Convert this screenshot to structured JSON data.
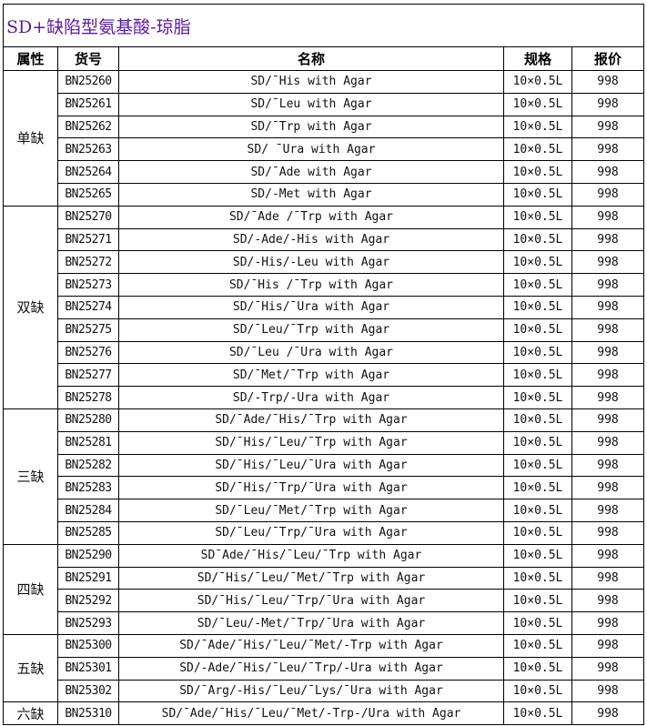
{
  "title": "SD+缺陷型氨基酸-琼脂",
  "title_color": "#5b1a9e",
  "headers": [
    "属性",
    "货号",
    "名称",
    "规格",
    "报价"
  ],
  "groups": [
    {
      "category": "单缺",
      "rows": [
        {
          "code": "BN25260",
          "name": "SD/ˉHis with Agar",
          "spec": "10×0.5L",
          "price": "998"
        },
        {
          "code": "BN25261",
          "name": "SD/ˉLeu with Agar",
          "spec": "10×0.5L",
          "price": "998"
        },
        {
          "code": "BN25262",
          "name": "SD/ˉTrp with Agar",
          "spec": "10×0.5L",
          "price": "998"
        },
        {
          "code": "BN25263",
          "name": "SD/ ˉUra  with Agar",
          "spec": "10×0.5L",
          "price": "998"
        },
        {
          "code": "BN25264",
          "name": "SD/ˉAde  with Agar",
          "spec": "10×0.5L",
          "price": "998"
        },
        {
          "code": "BN25265",
          "name": "SD/-Met  with Agar",
          "spec": "10×0.5L",
          "price": "998"
        }
      ]
    },
    {
      "category": "双缺",
      "rows": [
        {
          "code": "BN25270",
          "name": "SD/ˉAde /ˉTrp with Agar",
          "spec": "10×0.5L",
          "price": "998"
        },
        {
          "code": "BN25271",
          "name": "SD/-Ade/-His with Agar",
          "spec": "10×0.5L",
          "price": "998"
        },
        {
          "code": "BN25272",
          "name": "SD/-His/-Leu with Agar",
          "spec": "10×0.5L",
          "price": "998"
        },
        {
          "code": "BN25273",
          "name": "SD/ˉHis /ˉTrp with Agar",
          "spec": "10×0.5L",
          "price": "998"
        },
        {
          "code": "BN25274",
          "name": "SD/ˉHis/ˉUra  with Agar",
          "spec": "10×0.5L",
          "price": "998"
        },
        {
          "code": "BN25275",
          "name": "SD/ˉLeu/ˉTrp  with Agar",
          "spec": "10×0.5L",
          "price": "998"
        },
        {
          "code": "BN25276",
          "name": "SD/ˉLeu /ˉUra with  Agar",
          "spec": "10×0.5L",
          "price": "998"
        },
        {
          "code": "BN25277",
          "name": "SD/ˉMet/ˉTrp  with Agar",
          "spec": "10×0.5L",
          "price": "998"
        },
        {
          "code": "BN25278",
          "name": "SD/-Trp/-Ura  with Agar",
          "spec": "10×0.5L",
          "price": "998"
        }
      ]
    },
    {
      "category": "三缺",
      "rows": [
        {
          "code": "BN25280",
          "name": "SD/ˉAde/ˉHis/ˉTrp with Agar",
          "spec": "10×0.5L",
          "price": "998"
        },
        {
          "code": "BN25281",
          "name": "SD/ˉHis/ˉLeu/ˉTrp with Agar",
          "spec": "10×0.5L",
          "price": "998"
        },
        {
          "code": "BN25282",
          "name": "SD/ˉHis/ˉLeu/ˉUra with Agar",
          "spec": "10×0.5L",
          "price": "998"
        },
        {
          "code": "BN25283",
          "name": "SD/ˉHis/ˉTrp/ˉUra with Agar",
          "spec": "10×0.5L",
          "price": "998"
        },
        {
          "code": "BN25284",
          "name": "SD/ˉLeu/ˉMet/ˉTrp  with Agar",
          "spec": "10×0.5L",
          "price": "998"
        },
        {
          "code": "BN25285",
          "name": "SD/ˉLeu/ˉTrp/ˉUra  with Agar",
          "spec": "10×0.5L",
          "price": "998"
        }
      ]
    },
    {
      "category": "四缺",
      "rows": [
        {
          "code": "BN25290",
          "name": "SDˉAde/ˉHis/ˉLeu/ˉTrp with Agar",
          "spec": "10×0.5L",
          "price": "998"
        },
        {
          "code": "BN25291",
          "name": "SD/ˉHis/ˉLeu/ˉMet/ˉTrp with Agar",
          "spec": "10×0.5L",
          "price": "998"
        },
        {
          "code": "BN25292",
          "name": "SD/ˉHis/ˉLeu/ˉTrp/ˉUra with Agar",
          "spec": "10×0.5L",
          "price": "998"
        },
        {
          "code": "BN25293",
          "name": "SD/ˉLeu/-Met/ˉTrp/ˉUra with Agar",
          "spec": "10×0.5L",
          "price": "998"
        }
      ]
    },
    {
      "category": "五缺",
      "rows": [
        {
          "code": "BN25300",
          "name": "SD/ˉAde/ˉHis/ˉLeu/ˉMet/-Trp with Agar",
          "spec": "10×0.5L",
          "price": "998"
        },
        {
          "code": "BN25301",
          "name": "SD/-Ade/ˉHis/ˉLeu/ˉTrp/-Ura with Agar",
          "spec": "10×0.5L",
          "price": "998"
        },
        {
          "code": "BN25302",
          "name": "SD/ˉArg/-His/ˉLeu/ˉLys/ˉUra with Agar",
          "spec": "10×0.5L",
          "price": "998"
        }
      ]
    },
    {
      "category": "六缺",
      "rows": [
        {
          "code": "BN25310",
          "name": "SD/ˉAde/ˉHis/ˉLeu/ˉMet/-Trp-/Ura with Agar",
          "spec": "10×0.5L",
          "price": "998"
        }
      ]
    }
  ]
}
